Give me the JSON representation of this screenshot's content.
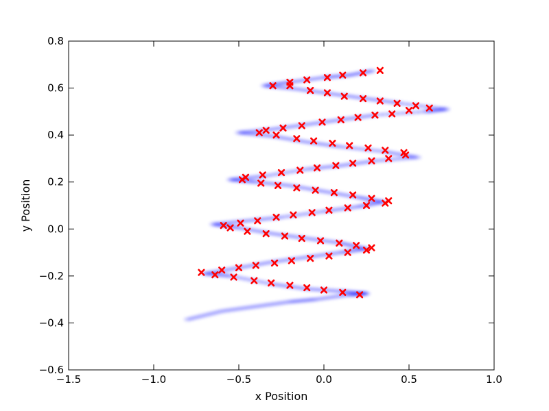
{
  "chart_data": {
    "type": "scatter",
    "xlabel": "x Position",
    "ylabel": "y Position",
    "xlim": [
      -1.5,
      1.0
    ],
    "ylim": [
      -0.6,
      0.8
    ],
    "x_ticks": [
      "−1.5",
      "−1.0",
      "−0.5",
      "0.0",
      "0.5",
      "1.0"
    ],
    "y_ticks": [
      "−0.6",
      "−0.4",
      "−0.2",
      "0.0",
      "0.2",
      "0.4",
      "0.6",
      "0.8"
    ],
    "x_tick_values": [
      -1.5,
      -1.0,
      -0.5,
      0.0,
      0.5,
      1.0
    ],
    "y_tick_values": [
      -0.6,
      -0.4,
      -0.2,
      0.0,
      0.2,
      0.4,
      0.6,
      0.8
    ],
    "grid": false,
    "legend": false,
    "series": [
      {
        "marker": "blurred-dots",
        "color": "#0000ff",
        "values": [
          [
            -0.8,
            -0.385
          ],
          [
            -0.6,
            -0.35
          ],
          [
            -0.4,
            -0.33
          ],
          [
            -0.2,
            -0.31
          ],
          [
            -0.05,
            -0.3
          ],
          [
            0.15,
            -0.28
          ],
          [
            0.25,
            -0.275
          ],
          [
            0.1,
            -0.265
          ],
          [
            -0.1,
            -0.255
          ],
          [
            -0.3,
            -0.235
          ],
          [
            -0.55,
            -0.2
          ],
          [
            -0.7,
            -0.19
          ],
          [
            -0.5,
            -0.165
          ],
          [
            -0.3,
            -0.14
          ],
          [
            -0.1,
            -0.12
          ],
          [
            0.1,
            -0.1
          ],
          [
            0.25,
            -0.085
          ],
          [
            0.1,
            -0.06
          ],
          [
            -0.1,
            -0.04
          ],
          [
            -0.3,
            -0.02
          ],
          [
            -0.5,
            0.005
          ],
          [
            -0.65,
            0.02
          ],
          [
            -0.45,
            0.035
          ],
          [
            -0.25,
            0.05
          ],
          [
            0.0,
            0.075
          ],
          [
            0.2,
            0.095
          ],
          [
            0.35,
            0.115
          ],
          [
            0.2,
            0.135
          ],
          [
            0.0,
            0.16
          ],
          [
            -0.2,
            0.185
          ],
          [
            -0.4,
            0.2
          ],
          [
            -0.55,
            0.21
          ],
          [
            -0.35,
            0.225
          ],
          [
            -0.1,
            0.255
          ],
          [
            0.1,
            0.27
          ],
          [
            0.3,
            0.29
          ],
          [
            0.55,
            0.305
          ],
          [
            0.35,
            0.33
          ],
          [
            0.1,
            0.35
          ],
          [
            -0.1,
            0.37
          ],
          [
            -0.3,
            0.395
          ],
          [
            -0.5,
            0.41
          ],
          [
            -0.3,
            0.425
          ],
          [
            -0.1,
            0.445
          ],
          [
            0.1,
            0.465
          ],
          [
            0.3,
            0.485
          ],
          [
            0.6,
            0.5
          ],
          [
            0.72,
            0.51
          ],
          [
            0.45,
            0.535
          ],
          [
            0.25,
            0.555
          ],
          [
            0.05,
            0.575
          ],
          [
            -0.15,
            0.595
          ],
          [
            -0.35,
            0.61
          ],
          [
            -0.2,
            0.625
          ],
          [
            0.0,
            0.645
          ],
          [
            0.15,
            0.655
          ],
          [
            0.3,
            0.675
          ]
        ]
      },
      {
        "marker": "x",
        "color": "#ff0000",
        "values": [
          [
            0.33,
            0.675
          ],
          [
            0.23,
            0.665
          ],
          [
            0.11,
            0.655
          ],
          [
            0.02,
            0.645
          ],
          [
            -0.1,
            0.635
          ],
          [
            -0.2,
            0.625
          ],
          [
            -0.3,
            0.61
          ],
          [
            -0.2,
            0.61
          ],
          [
            -0.08,
            0.59
          ],
          [
            0.02,
            0.58
          ],
          [
            0.12,
            0.565
          ],
          [
            0.23,
            0.555
          ],
          [
            0.33,
            0.545
          ],
          [
            0.43,
            0.535
          ],
          [
            0.54,
            0.525
          ],
          [
            0.62,
            0.515
          ],
          [
            0.5,
            0.505
          ],
          [
            0.4,
            0.49
          ],
          [
            0.3,
            0.485
          ],
          [
            0.2,
            0.475
          ],
          [
            0.1,
            0.465
          ],
          [
            -0.01,
            0.455
          ],
          [
            -0.13,
            0.44
          ],
          [
            -0.24,
            0.43
          ],
          [
            -0.34,
            0.42
          ],
          [
            -0.38,
            0.41
          ],
          [
            -0.28,
            0.4
          ],
          [
            -0.16,
            0.385
          ],
          [
            -0.06,
            0.375
          ],
          [
            0.05,
            0.365
          ],
          [
            0.15,
            0.355
          ],
          [
            0.26,
            0.345
          ],
          [
            0.36,
            0.335
          ],
          [
            0.47,
            0.325
          ],
          [
            0.48,
            0.315
          ],
          [
            0.38,
            0.3
          ],
          [
            0.28,
            0.29
          ],
          [
            0.17,
            0.28
          ],
          [
            0.07,
            0.27
          ],
          [
            -0.04,
            0.26
          ],
          [
            -0.14,
            0.25
          ],
          [
            -0.25,
            0.24
          ],
          [
            -0.36,
            0.23
          ],
          [
            -0.46,
            0.22
          ],
          [
            -0.48,
            0.21
          ],
          [
            -0.37,
            0.195
          ],
          [
            -0.27,
            0.185
          ],
          [
            -0.16,
            0.175
          ],
          [
            -0.05,
            0.165
          ],
          [
            0.06,
            0.155
          ],
          [
            0.17,
            0.145
          ],
          [
            0.28,
            0.13
          ],
          [
            0.38,
            0.12
          ],
          [
            0.36,
            0.11
          ],
          [
            0.25,
            0.1
          ],
          [
            0.14,
            0.09
          ],
          [
            0.03,
            0.08
          ],
          [
            -0.07,
            0.07
          ],
          [
            -0.18,
            0.06
          ],
          [
            -0.28,
            0.05
          ],
          [
            -0.39,
            0.035
          ],
          [
            -0.49,
            0.025
          ],
          [
            -0.59,
            0.015
          ],
          [
            -0.55,
            0.005
          ],
          [
            -0.45,
            -0.01
          ],
          [
            -0.34,
            -0.02
          ],
          [
            -0.23,
            -0.03
          ],
          [
            -0.13,
            -0.04
          ],
          [
            -0.02,
            -0.05
          ],
          [
            0.09,
            -0.06
          ],
          [
            0.19,
            -0.07
          ],
          [
            0.28,
            -0.08
          ],
          [
            0.25,
            -0.09
          ],
          [
            0.14,
            -0.1
          ],
          [
            0.03,
            -0.115
          ],
          [
            -0.08,
            -0.125
          ],
          [
            -0.19,
            -0.135
          ],
          [
            -0.29,
            -0.145
          ],
          [
            -0.4,
            -0.155
          ],
          [
            -0.5,
            -0.165
          ],
          [
            -0.6,
            -0.175
          ],
          [
            -0.72,
            -0.185
          ],
          [
            -0.64,
            -0.195
          ],
          [
            -0.53,
            -0.205
          ],
          [
            -0.41,
            -0.22
          ],
          [
            -0.31,
            -0.23
          ],
          [
            -0.2,
            -0.24
          ],
          [
            -0.1,
            -0.25
          ],
          [
            0.0,
            -0.26
          ],
          [
            0.11,
            -0.27
          ],
          [
            0.21,
            -0.28
          ]
        ]
      }
    ]
  }
}
